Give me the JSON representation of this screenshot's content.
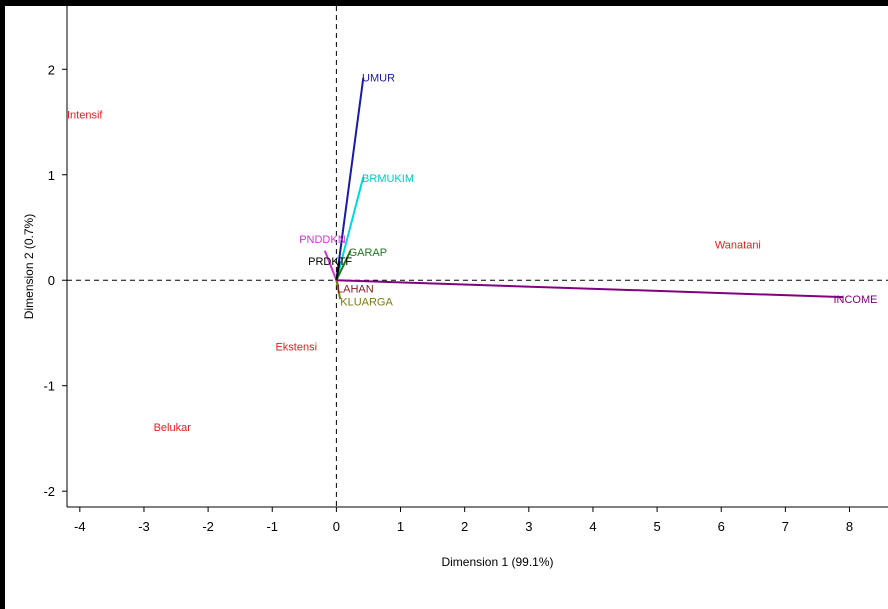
{
  "chart_data": {
    "type": "scatter",
    "title": "",
    "xlabel": "Dimension 1 (99.1%)",
    "ylabel": "Dimension 2 (0.7%)",
    "xlim": [
      -4.2,
      8.6
    ],
    "ylim": [
      -2.15,
      2.6
    ],
    "xticks": [
      {
        "v": -4,
        "label": "-4"
      },
      {
        "v": -3,
        "label": "-3"
      },
      {
        "v": -2,
        "label": "-2"
      },
      {
        "v": -1,
        "label": "-1"
      },
      {
        "v": 0,
        "label": "0"
      },
      {
        "v": 1,
        "label": "1"
      },
      {
        "v": 2,
        "label": "2"
      },
      {
        "v": 3,
        "label": "3"
      },
      {
        "v": 4,
        "label": "4"
      },
      {
        "v": 5,
        "label": "5"
      },
      {
        "v": 6,
        "label": "6"
      },
      {
        "v": 7,
        "label": "7"
      },
      {
        "v": 8,
        "label": "8"
      }
    ],
    "yticks": [
      {
        "v": -2,
        "label": "-2"
      },
      {
        "v": -1,
        "label": "-1"
      },
      {
        "v": 0,
        "label": "0"
      },
      {
        "v": 1,
        "label": "1"
      },
      {
        "v": 2,
        "label": "2"
      }
    ],
    "vectors": [
      {
        "name": "UMUR",
        "x": 0.42,
        "y": 1.92,
        "color": "#1a1aa6"
      },
      {
        "name": "BRMUKIM",
        "x": 0.42,
        "y": 0.98,
        "color": "#00d8d8"
      },
      {
        "name": "PNDDKN",
        "x": -0.18,
        "y": 0.28,
        "color": "#d633d6"
      },
      {
        "name": "GARAP",
        "x": 0.22,
        "y": 0.28,
        "color": "#1c7a1c"
      },
      {
        "name": "PRDKTF",
        "x": 0.05,
        "y": 0.18,
        "color": "#000000"
      },
      {
        "name": "LAHAN",
        "x": 0.03,
        "y": -0.06,
        "color": "#8b1a1a"
      },
      {
        "name": "KLUARGA",
        "x": 0.06,
        "y": -0.18,
        "color": "#7a7a10"
      },
      {
        "name": "INCOME",
        "x": 7.9,
        "y": -0.16,
        "color": "#800080"
      }
    ],
    "labels": [
      {
        "text": "UMUR",
        "x": 0.4,
        "y": 1.92,
        "color": "#1a1aa6"
      },
      {
        "text": "BRMUKIM",
        "x": 0.4,
        "y": 0.97,
        "color": "#00c8c8"
      },
      {
        "text": "PNDDKN",
        "x": -0.58,
        "y": 0.39,
        "color": "#d633d6"
      },
      {
        "text": "GARAP",
        "x": 0.19,
        "y": 0.27,
        "color": "#1c7a1c"
      },
      {
        "text": "PRDKTF",
        "x": -0.44,
        "y": 0.18,
        "color": "#000000"
      },
      {
        "text": "LAHAN",
        "x": 0.01,
        "y": -0.08,
        "color": "#8b1a1a"
      },
      {
        "text": "KLUARGA",
        "x": 0.06,
        "y": -0.2,
        "color": "#7a7a10"
      },
      {
        "text": "INCOME",
        "x": 7.75,
        "y": -0.18,
        "color": "#800080"
      },
      {
        "text": "Intensif",
        "x": -4.2,
        "y": 1.57,
        "color": "#e02020"
      },
      {
        "text": "Wanatani",
        "x": 5.9,
        "y": 0.34,
        "color": "#e02020"
      },
      {
        "text": "Ekstensi",
        "x": -0.95,
        "y": -0.63,
        "color": "#e02020"
      },
      {
        "text": "Belukar",
        "x": -2.85,
        "y": -1.39,
        "color": "#e02020"
      }
    ]
  }
}
